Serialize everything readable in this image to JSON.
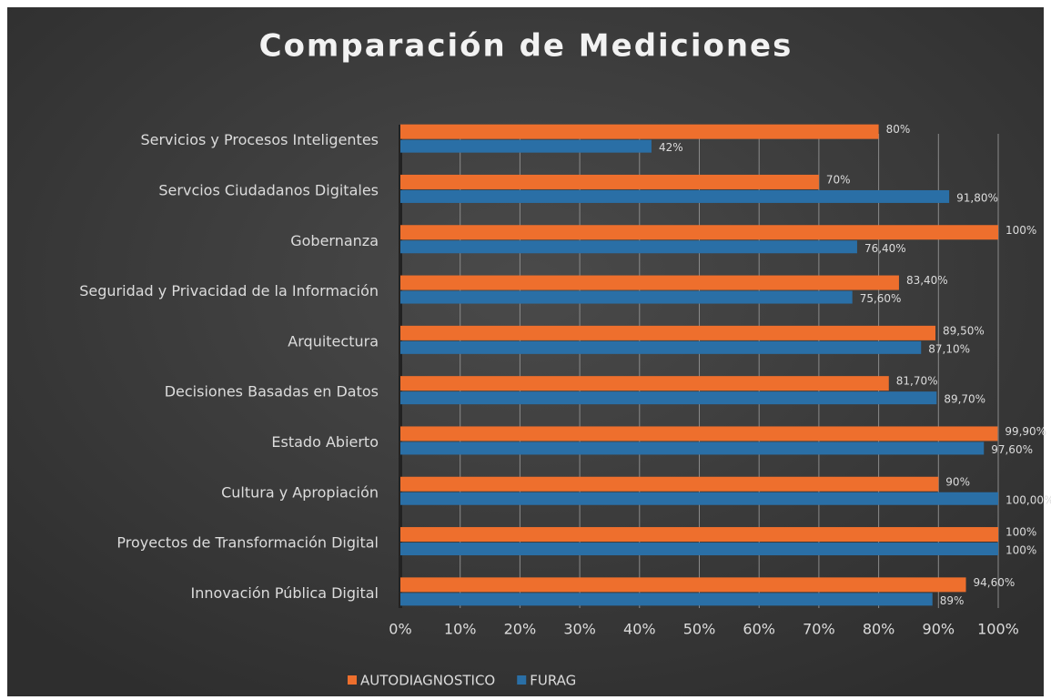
{
  "chart_data": {
    "type": "barh",
    "title": "Comparación de Mediciones",
    "categories": [
      "Servicios y Procesos Inteligentes",
      "Servcios Ciudadanos Digitales",
      "Gobernanza",
      "Seguridad y Privacidad de la Información",
      "Arquitectura",
      "Decisiones Basadas en Datos",
      "Estado Abierto",
      "Cultura y Apropiación",
      "Proyectos de Transformación Digital",
      "Innovación Pública Digital"
    ],
    "series": [
      {
        "name": "AUTODIAGNOSTICO",
        "color": "#ee6f2d",
        "values": [
          80,
          70,
          100,
          83.4,
          89.5,
          81.7,
          99.9,
          90,
          100,
          94.6
        ],
        "value_labels": [
          "80%",
          "70%",
          "100%",
          "83,40%",
          "89,50%",
          "81,70%",
          "99,90%",
          "90%",
          "100%",
          "94,60%"
        ]
      },
      {
        "name": "FURAG",
        "color": "#2a6fa6",
        "values": [
          42,
          91.8,
          76.4,
          75.6,
          87.1,
          89.7,
          97.6,
          100,
          100,
          89
        ],
        "value_labels": [
          "42%",
          "91,80%",
          "76,40%",
          "75,60%",
          "87,10%",
          "89,70%",
          "97,60%",
          "100,00%",
          "100%",
          "89%"
        ]
      }
    ],
    "xlim": [
      0,
      100
    ],
    "xticks": [
      {
        "value": 0,
        "label": "0%"
      },
      {
        "value": 10,
        "label": "10%"
      },
      {
        "value": 20,
        "label": "20%"
      },
      {
        "value": 30,
        "label": "30%"
      },
      {
        "value": 40,
        "label": "40%"
      },
      {
        "value": 50,
        "label": "50%"
      },
      {
        "value": 60,
        "label": "60%"
      },
      {
        "value": 70,
        "label": "70%"
      },
      {
        "value": 80,
        "label": "80%"
      },
      {
        "value": 90,
        "label": "90%"
      },
      {
        "value": 100,
        "label": "100%"
      }
    ],
    "grid": true,
    "legend": "bottom"
  }
}
